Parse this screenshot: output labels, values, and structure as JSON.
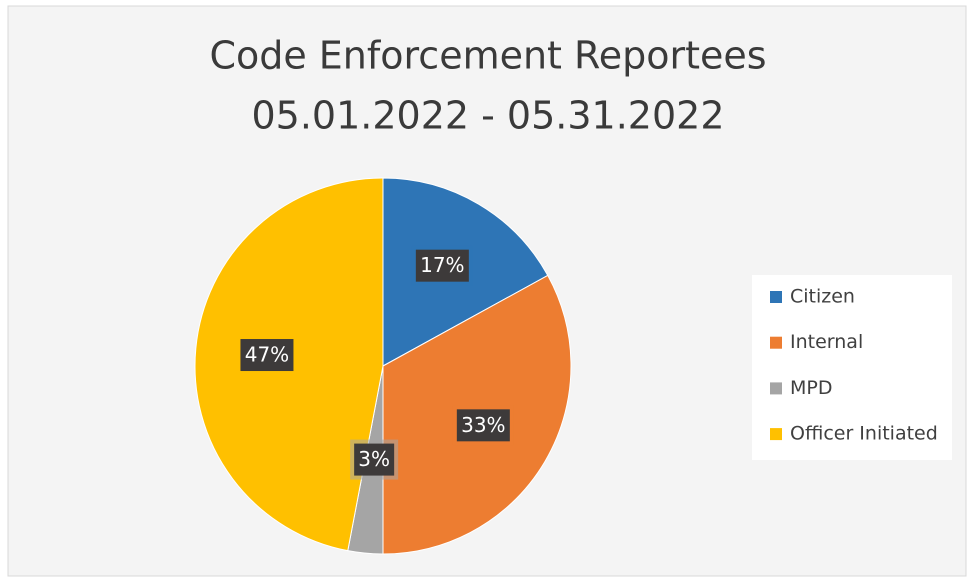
{
  "chart_data": {
    "type": "pie",
    "title": "Code Enforcement Reportees",
    "subtitle": "05.01.2022 - 05.31.2022",
    "categories": [
      "Citizen",
      "Internal",
      "MPD",
      "Officer Initiated"
    ],
    "values": [
      17,
      33,
      3,
      47
    ],
    "value_labels": [
      "17%",
      "33%",
      "3%",
      "47%"
    ],
    "colors": [
      "#2e75b6",
      "#ed7d31",
      "#a5a5a5",
      "#ffc000"
    ],
    "legend": "right"
  }
}
